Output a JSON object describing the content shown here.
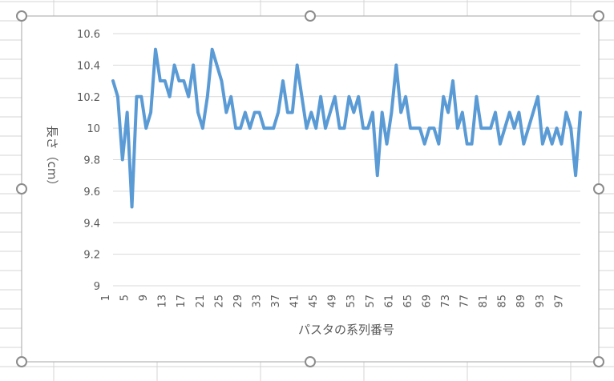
{
  "colors": {
    "series_line": "#5b9bd5",
    "gridline": "#d9d9d9",
    "axis_text": "#595959",
    "cell_border": "#d4d4d4",
    "chart_border": "#a6a6a6",
    "handle_stroke": "#8c8c8c"
  },
  "chart_data": {
    "type": "line",
    "title": "",
    "xlabel": "パスタの系列番号",
    "ylabel": "長さ（cm）",
    "ylim": [
      9,
      10.6
    ],
    "ytick_step": 0.2,
    "y_tick_labels": [
      "10.6",
      "10.4",
      "10.2",
      "10",
      "9.8",
      "9.6",
      "9.4",
      "9.2",
      "9"
    ],
    "x_tick_labels": [
      "1",
      "5",
      "9",
      "13",
      "17",
      "21",
      "25",
      "29",
      "33",
      "37",
      "41",
      "45",
      "49",
      "53",
      "57",
      "61",
      "65",
      "69",
      "73",
      "77",
      "81",
      "85",
      "89",
      "93",
      "97"
    ],
    "x": [
      1,
      2,
      3,
      4,
      5,
      6,
      7,
      8,
      9,
      10,
      11,
      12,
      13,
      14,
      15,
      16,
      17,
      18,
      19,
      20,
      21,
      22,
      23,
      24,
      25,
      26,
      27,
      28,
      29,
      30,
      31,
      32,
      33,
      34,
      35,
      36,
      37,
      38,
      39,
      40,
      41,
      42,
      43,
      44,
      45,
      46,
      47,
      48,
      49,
      50,
      51,
      52,
      53,
      54,
      55,
      56,
      57,
      58,
      59,
      60,
      61,
      62,
      63,
      64,
      65,
      66,
      67,
      68,
      69,
      70,
      71,
      72,
      73,
      74,
      75,
      76,
      77,
      78,
      79,
      80,
      81,
      82,
      83,
      84,
      85,
      86,
      87,
      88,
      89,
      90,
      91,
      92,
      93,
      94,
      95,
      96,
      97,
      98,
      99,
      100
    ],
    "series": [
      {
        "values": [
          10.3,
          10.2,
          9.8,
          10.1,
          9.5,
          10.2,
          10.2,
          10.0,
          10.1,
          10.5,
          10.3,
          10.3,
          10.2,
          10.4,
          10.3,
          10.3,
          10.2,
          10.4,
          10.1,
          10.0,
          10.2,
          10.5,
          10.4,
          10.3,
          10.1,
          10.2,
          10.0,
          10.0,
          10.1,
          10.0,
          10.1,
          10.1,
          10.0,
          10.0,
          10.0,
          10.1,
          10.3,
          10.1,
          10.1,
          10.4,
          10.2,
          10.0,
          10.1,
          10.0,
          10.2,
          10.0,
          10.1,
          10.2,
          10.0,
          10.0,
          10.2,
          10.1,
          10.2,
          10.0,
          10.0,
          10.1,
          9.7,
          10.1,
          9.9,
          10.1,
          10.4,
          10.1,
          10.2,
          10.0,
          10.0,
          10.0,
          9.9,
          10.0,
          10.0,
          9.9,
          10.2,
          10.1,
          10.3,
          10.0,
          10.1,
          9.9,
          9.9,
          10.2,
          10.0,
          10.0,
          10.0,
          10.1,
          9.9,
          10.0,
          10.1,
          10.0,
          10.1,
          9.9,
          10.0,
          10.1,
          10.2,
          9.9,
          10.0,
          9.9,
          10.0,
          9.9,
          10.1,
          10.0,
          9.7,
          10.1
        ]
      }
    ]
  }
}
